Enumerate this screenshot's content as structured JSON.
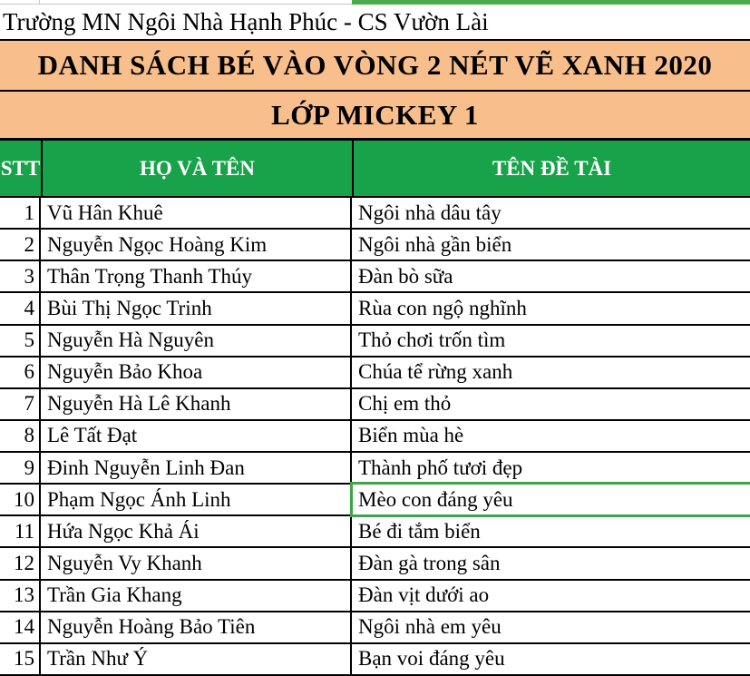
{
  "school_header": "Trường MN Ngôi Nhà Hạnh Phúc - CS Vườn Lài",
  "title": "DANH SÁCH BÉ VÀO VÒNG 2 NÉT VẼ XANH 2020",
  "class_name": "LỚP MICKEY 1",
  "columns": [
    "STT",
    "HỌ VÀ TÊN",
    "TÊN ĐỀ TÀI"
  ],
  "rows": [
    {
      "stt": "1",
      "name": "Vũ Hân Khuê",
      "topic": "Ngôi nhà dâu tây"
    },
    {
      "stt": "2",
      "name": "Nguyễn Ngọc Hoàng Kim",
      "topic": "Ngôi nhà gần biển"
    },
    {
      "stt": "3",
      "name": "Thân Trọng Thanh Thúy",
      "topic": "Đàn bò sữa"
    },
    {
      "stt": "4",
      "name": "Bùi Thị Ngọc Trinh",
      "topic": "Rùa con ngộ nghĩnh"
    },
    {
      "stt": "5",
      "name": "Nguyễn Hà Nguyên",
      "topic": "Thỏ chơi trốn tìm"
    },
    {
      "stt": "6",
      "name": "Nguyễn Bảo Khoa",
      "topic": "Chúa tể rừng xanh"
    },
    {
      "stt": "7",
      "name": "Nguyễn Hà Lê Khanh",
      "topic": "Chị em thỏ"
    },
    {
      "stt": "8",
      "name": "Lê Tất Đạt",
      "topic": "Biển mùa hè"
    },
    {
      "stt": "9",
      "name": "Đinh Nguyễn Linh Đan",
      "topic": "Thành phố tươi đẹp"
    },
    {
      "stt": "10",
      "name": "Phạm Ngọc Ánh Linh",
      "topic": "Mèo con đáng yêu"
    },
    {
      "stt": "11",
      "name": "Hứa Ngọc Khả Ái",
      "topic": "Bé đi tắm biển"
    },
    {
      "stt": "12",
      "name": "Nguyễn Vy Khanh",
      "topic": "Đàn gà trong sân"
    },
    {
      "stt": "13",
      "name": "Trần Gia Khang",
      "topic": "Đàn vịt dưới ao"
    },
    {
      "stt": "14",
      "name": "Nguyễn Hoàng Bảo Tiên",
      "topic": "Ngôi nhà em yêu"
    },
    {
      "stt": "15",
      "name": "Trần Như Ý",
      "topic": "Bạn voi đáng yêu"
    }
  ],
  "selected_cell": {
    "row": "10",
    "column": "TÊN ĐỀ TÀI",
    "value": "Mèo con đáng yêu"
  },
  "colors": {
    "banner_orange": "#f8be8c",
    "header_green": "#18a24a",
    "sliver_green": "#48ac4c",
    "selection_border_green": "#3fa447",
    "gridline_gray": "#c9c9c9",
    "border_black": "#000000"
  }
}
